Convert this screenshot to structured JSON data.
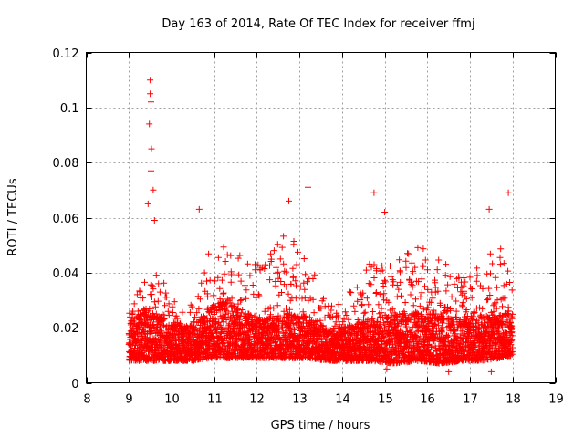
{
  "chart_data": {
    "type": "scatter",
    "title": "Day 163 of 2014, Rate Of TEC Index for receiver ffmj",
    "xlabel": "GPS time / hours",
    "ylabel": "ROTI / TECUs",
    "xlim": [
      8,
      19
    ],
    "ylim": [
      0,
      0.12
    ],
    "xticks": [
      "8",
      "9",
      "10",
      "11",
      "12",
      "13",
      "14",
      "15",
      "16",
      "17",
      "18",
      "19"
    ],
    "yticks": [
      "0",
      "0.02",
      "0.04",
      "0.06",
      "0.08",
      "0.1",
      "0.12"
    ],
    "grid": true,
    "marker": "plus",
    "color": "#ff0000",
    "data_time_range": [
      9.0,
      18.0
    ],
    "notable_points": [
      {
        "x": 9.5,
        "y": 0.11
      },
      {
        "x": 9.5,
        "y": 0.105
      },
      {
        "x": 9.52,
        "y": 0.102
      },
      {
        "x": 9.48,
        "y": 0.094
      },
      {
        "x": 9.53,
        "y": 0.085
      },
      {
        "x": 9.52,
        "y": 0.077
      },
      {
        "x": 9.57,
        "y": 0.07
      },
      {
        "x": 9.45,
        "y": 0.065
      },
      {
        "x": 9.6,
        "y": 0.059
      },
      {
        "x": 10.65,
        "y": 0.063
      },
      {
        "x": 12.75,
        "y": 0.066
      },
      {
        "x": 13.2,
        "y": 0.071
      },
      {
        "x": 14.75,
        "y": 0.069
      },
      {
        "x": 15.0,
        "y": 0.062
      },
      {
        "x": 17.45,
        "y": 0.063
      },
      {
        "x": 17.9,
        "y": 0.069
      },
      {
        "x": 15.05,
        "y": 0.005
      },
      {
        "x": 16.5,
        "y": 0.004
      },
      {
        "x": 17.5,
        "y": 0.004
      }
    ],
    "activity_envelope": [
      {
        "x": 9.0,
        "low": 0.008,
        "typical": 0.016,
        "high": 0.028
      },
      {
        "x": 9.3,
        "low": 0.008,
        "typical": 0.018,
        "high": 0.035
      },
      {
        "x": 9.6,
        "low": 0.008,
        "typical": 0.02,
        "high": 0.045
      },
      {
        "x": 10.0,
        "low": 0.008,
        "typical": 0.016,
        "high": 0.03
      },
      {
        "x": 10.5,
        "low": 0.008,
        "typical": 0.015,
        "high": 0.03
      },
      {
        "x": 10.9,
        "low": 0.009,
        "typical": 0.02,
        "high": 0.05
      },
      {
        "x": 11.3,
        "low": 0.009,
        "typical": 0.022,
        "high": 0.05
      },
      {
        "x": 11.8,
        "low": 0.009,
        "typical": 0.018,
        "high": 0.045
      },
      {
        "x": 12.2,
        "low": 0.009,
        "typical": 0.017,
        "high": 0.045
      },
      {
        "x": 12.7,
        "low": 0.009,
        "typical": 0.018,
        "high": 0.055
      },
      {
        "x": 13.2,
        "low": 0.009,
        "typical": 0.017,
        "high": 0.045
      },
      {
        "x": 13.7,
        "low": 0.008,
        "typical": 0.014,
        "high": 0.028
      },
      {
        "x": 14.2,
        "low": 0.008,
        "typical": 0.015,
        "high": 0.035
      },
      {
        "x": 14.7,
        "low": 0.008,
        "typical": 0.017,
        "high": 0.045
      },
      {
        "x": 15.2,
        "low": 0.007,
        "typical": 0.018,
        "high": 0.045
      },
      {
        "x": 15.8,
        "low": 0.008,
        "typical": 0.018,
        "high": 0.05
      },
      {
        "x": 16.3,
        "low": 0.007,
        "typical": 0.018,
        "high": 0.045
      },
      {
        "x": 16.8,
        "low": 0.008,
        "typical": 0.017,
        "high": 0.04
      },
      {
        "x": 17.3,
        "low": 0.008,
        "typical": 0.018,
        "high": 0.045
      },
      {
        "x": 17.7,
        "low": 0.009,
        "typical": 0.019,
        "high": 0.05
      },
      {
        "x": 18.0,
        "low": 0.01,
        "typical": 0.018,
        "high": 0.035
      }
    ],
    "sample_step_hours": 0.0042,
    "points_per_step": 2
  }
}
